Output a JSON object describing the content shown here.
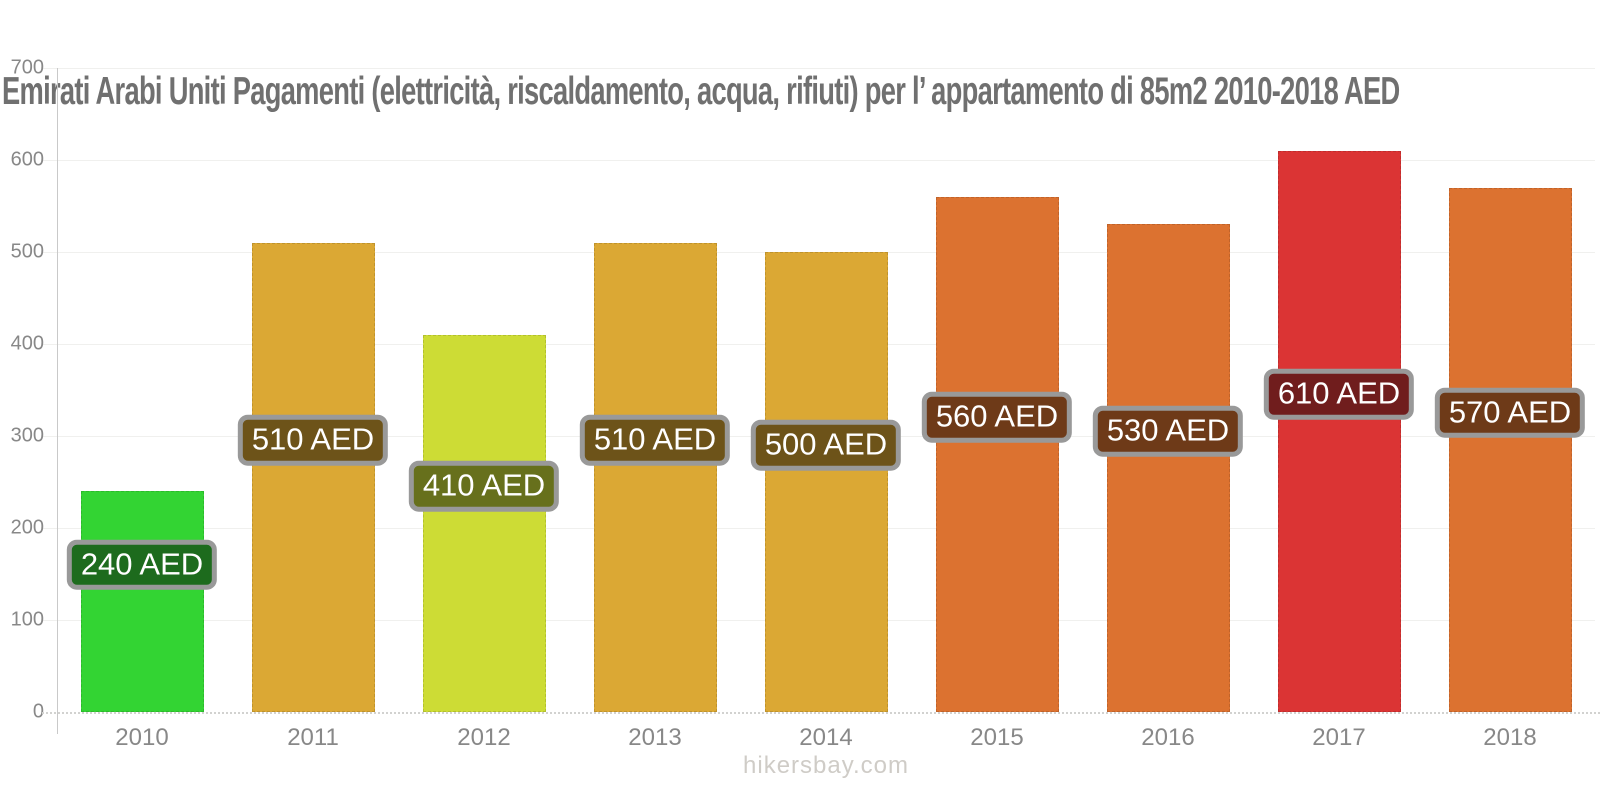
{
  "title": "Emirati Arabi Uniti Pagamenti (elettricità, riscaldamento, acqua, rifiuti) per l’ appartamento di 85m2 2010-2018 AED",
  "footer": "hikersbay.com",
  "colors": {
    "title_text": "#707070",
    "axis_line": "#c9c9c9",
    "tick_text": "#888888",
    "grid_line": "#f0f0ee",
    "label_border": "#999999",
    "label_text": "#ffffff",
    "footer_text": "#cfccc7"
  },
  "chart_data": {
    "type": "bar",
    "title": "Emirati Arabi Uniti Pagamenti (elettricità, riscaldamento, acqua, rifiuti) per l’ appartamento di 85m2 2010-2018 AED",
    "xlabel": "",
    "ylabel": "",
    "unit": "AED",
    "categories": [
      "2010",
      "2011",
      "2012",
      "2013",
      "2014",
      "2015",
      "2016",
      "2017",
      "2018"
    ],
    "values": [
      240,
      510,
      410,
      510,
      500,
      560,
      530,
      610,
      570
    ],
    "bar_labels": [
      "240 AED",
      "510 AED",
      "410 AED",
      "510 AED",
      "500 AED",
      "560 AED",
      "530 AED",
      "610 AED",
      "570 AED"
    ],
    "bar_colors": [
      "#33d433",
      "#dba834",
      "#cddc35",
      "#dba834",
      "#dba834",
      "#dc7230",
      "#dc7230",
      "#db3434",
      "#dc7230"
    ],
    "label_bg_colors": [
      "#1d6b1d",
      "#6d5319",
      "#67701c",
      "#6d5319",
      "#6d5319",
      "#6e3a18",
      "#6e3a18",
      "#701d1d",
      "#6e3a18"
    ],
    "ylim": [
      0,
      700
    ],
    "yticks": [
      0,
      100,
      200,
      300,
      400,
      500,
      600,
      700
    ],
    "grid": "horizontal",
    "legend": "none"
  }
}
